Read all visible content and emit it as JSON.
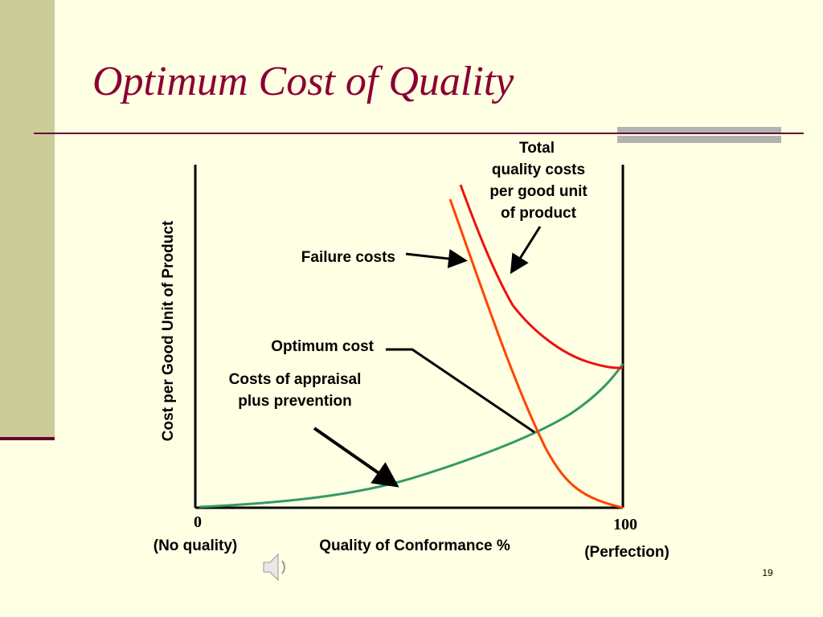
{
  "title": "Optimum Cost of Quality",
  "y_axis_label": "Cost per Good Unit of Product",
  "x_axis": {
    "label": "Quality of Conformance %",
    "min_label": "0",
    "max_label": "100",
    "min_note": "(No quality)",
    "max_note": "(Perfection)"
  },
  "annotations": {
    "total": [
      "Total",
      "quality costs",
      "per good unit",
      "of product"
    ],
    "failure": "Failure costs",
    "optimum": "Optimum cost",
    "appraisal": [
      "Costs of appraisal",
      "plus prevention"
    ]
  },
  "slide_number": "19"
}
